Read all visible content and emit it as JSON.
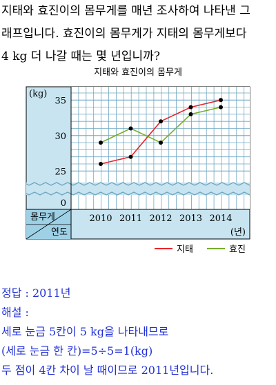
{
  "question": {
    "lines": [
      "지태와 효진이의 몸무게를 매년 조사하여 나타낸 그",
      "래프입니다. 효진이의 몸무게가 지태의 몸무게보다",
      "4 kg 더 나갈 때는 몇 년입니까?"
    ]
  },
  "chart_data": {
    "type": "line",
    "title": "지태와 효진이의 몸무게",
    "x": [
      2010,
      2011,
      2012,
      2013,
      2014
    ],
    "xlabel": "연도",
    "ylabel": "몸무게",
    "y_unit": "(kg)",
    "x_unit": "(년)",
    "y_ticks": [
      0,
      25,
      30,
      35
    ],
    "ylim": [
      25,
      36
    ],
    "y_axis_break": true,
    "grid": true,
    "legend_position": "bottom-right",
    "series": [
      {
        "name": "지태",
        "values": [
          26,
          27,
          32,
          34,
          35
        ],
        "color": "#e8262b"
      },
      {
        "name": "효진",
        "values": [
          29,
          31,
          29,
          33,
          34
        ],
        "color": "#77ad2b"
      }
    ],
    "colors": {
      "panel": "#c7e4f0",
      "grid": "#6ea7c2",
      "label_cell": "#9fd1e6"
    }
  },
  "answer": {
    "lines": [
      "정답 : 2011년",
      "해설 :",
      "세로 눈금 5칸이 5 kg을 나타내므로",
      "(세로 눈금 한 칸)=5÷5=1(kg)",
      "두 점이 4칸 차이 날 때이므로 2011년입니다."
    ]
  }
}
